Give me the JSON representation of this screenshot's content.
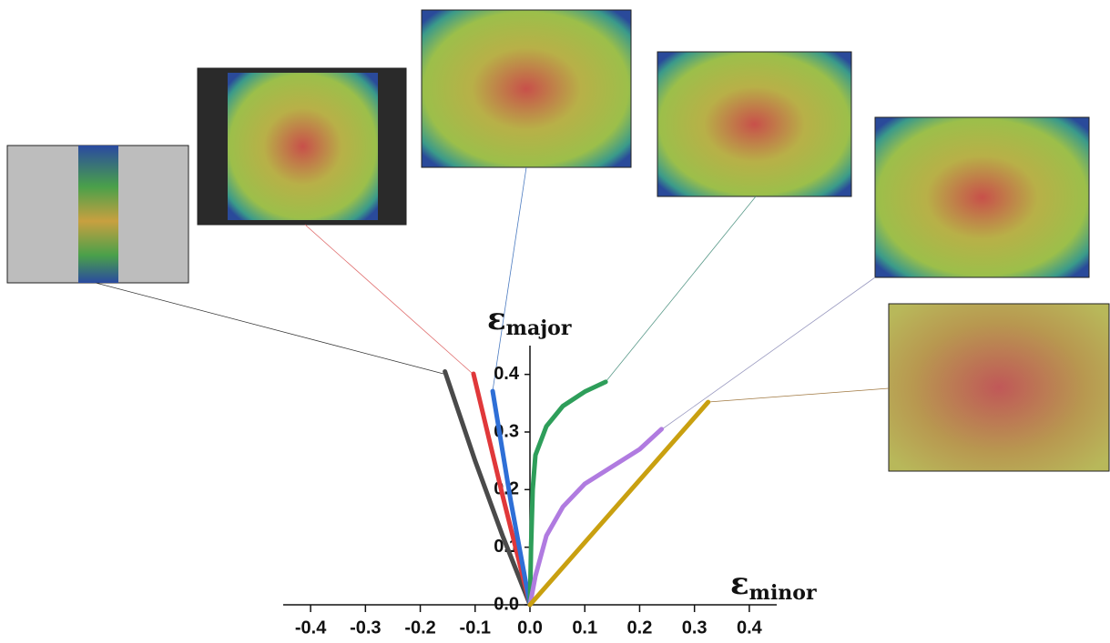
{
  "chart_data": {
    "type": "line",
    "xlabel": {
      "symbol": "ε",
      "subscript": "minor"
    },
    "ylabel": {
      "symbol": "ε",
      "subscript": "major"
    },
    "xlim": [
      -0.45,
      0.45
    ],
    "xticks": [
      -0.4,
      -0.3,
      -0.2,
      -0.1,
      {
        "value": 0,
        "label": "0.0"
      },
      0.1,
      0.2,
      0.3,
      0.4
    ],
    "ylim": [
      0,
      0.45
    ],
    "yticks": [
      {
        "value": 0,
        "label": "0.0"
      },
      0.1,
      0.2,
      0.3,
      0.4
    ],
    "series": [
      {
        "color": "#4a4a4a",
        "x": [
          0,
          -0.05,
          -0.1,
          -0.155
        ],
        "values": [
          0,
          0.12,
          0.25,
          0.405
        ]
      },
      {
        "color": "#e0383a",
        "x": [
          0,
          -0.05,
          -0.103
        ],
        "values": [
          0,
          0.19,
          0.401
        ]
      },
      {
        "color": "#2e6fd6",
        "x": [
          0,
          -0.035,
          -0.068
        ],
        "values": [
          0,
          0.18,
          0.371
        ]
      },
      {
        "color": "#2e9e5a",
        "x": [
          0,
          0.002,
          0.005,
          0.01,
          0.03,
          0.06,
          0.1,
          0.138
        ],
        "values": [
          0,
          0.1,
          0.2,
          0.26,
          0.31,
          0.345,
          0.37,
          0.387
        ]
      },
      {
        "color": "#b07be0",
        "x": [
          0,
          0.01,
          0.03,
          0.06,
          0.1,
          0.15,
          0.2,
          0.24
        ],
        "values": [
          0,
          0.05,
          0.12,
          0.17,
          0.21,
          0.24,
          0.27,
          0.305
        ]
      },
      {
        "color": "#c9a010",
        "x": [
          0,
          0.325
        ],
        "values": [
          0,
          0.352
        ]
      }
    ]
  }
}
